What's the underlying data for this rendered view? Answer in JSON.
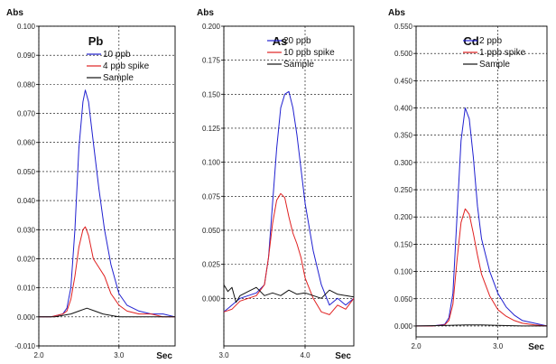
{
  "chart_data": [
    {
      "type": "line",
      "title": "Pb",
      "ylabel": "Abs",
      "xlabel": "Sec",
      "xlim": [
        2.0,
        3.7
      ],
      "ylim": [
        -0.01,
        0.1
      ],
      "xticks": [
        2.0,
        3.0
      ],
      "xtick_labels": [
        "2.0",
        "3.0"
      ],
      "yticks": [
        -0.01,
        0.0,
        0.01,
        0.02,
        0.03,
        0.04,
        0.05,
        0.06,
        0.07,
        0.08,
        0.09,
        0.1
      ],
      "ytick_labels": [
        "-0.010",
        "0.000",
        "0.010",
        "0.020",
        "0.030",
        "0.040",
        "0.050",
        "0.060",
        "0.070",
        "0.080",
        "0.090",
        "0.100"
      ],
      "grid": true,
      "legend_position": "top-center",
      "series": [
        {
          "name": "10 ppb",
          "color": "#2020d0",
          "x": [
            2.0,
            2.15,
            2.3,
            2.35,
            2.4,
            2.45,
            2.5,
            2.55,
            2.58,
            2.62,
            2.68,
            2.75,
            2.82,
            2.9,
            3.0,
            3.1,
            3.25,
            3.4,
            3.55,
            3.7
          ],
          "y": [
            0.0,
            0.0,
            0.001,
            0.003,
            0.01,
            0.03,
            0.058,
            0.074,
            0.078,
            0.074,
            0.06,
            0.044,
            0.03,
            0.018,
            0.008,
            0.004,
            0.002,
            0.001,
            0.001,
            0.0
          ]
        },
        {
          "name": "4 ppb spike",
          "color": "#e02020",
          "x": [
            2.0,
            2.15,
            2.3,
            2.35,
            2.4,
            2.45,
            2.5,
            2.55,
            2.58,
            2.62,
            2.68,
            2.75,
            2.82,
            2.9,
            3.0,
            3.1,
            3.25,
            3.4,
            3.55,
            3.7
          ],
          "y": [
            0.0,
            0.0,
            0.001,
            0.002,
            0.006,
            0.014,
            0.024,
            0.03,
            0.031,
            0.028,
            0.02,
            0.017,
            0.014,
            0.008,
            0.004,
            0.002,
            0.001,
            0.001,
            0.0,
            0.0
          ]
        },
        {
          "name": "Sample",
          "color": "#111111",
          "x": [
            2.0,
            2.2,
            2.4,
            2.5,
            2.6,
            2.7,
            2.8,
            3.0,
            3.2,
            3.4,
            3.7
          ],
          "y": [
            0.0,
            0.0,
            0.001,
            0.002,
            0.003,
            0.002,
            0.001,
            0.0,
            0.0,
            0.0,
            0.0
          ]
        }
      ]
    },
    {
      "type": "line",
      "title": "As",
      "ylabel": "Abs",
      "xlabel": "Sec",
      "xlim": [
        3.0,
        4.6
      ],
      "ylim": [
        -0.035,
        0.2
      ],
      "xticks": [
        3.0,
        4.0
      ],
      "xtick_labels": [
        "3.0",
        "4.0"
      ],
      "yticks": [
        0.0,
        0.025,
        0.05,
        0.075,
        0.1,
        0.125,
        0.15,
        0.175,
        0.2
      ],
      "ytick_labels": [
        "0.000",
        "0.025",
        "0.050",
        "0.075",
        "0.100",
        "0.125",
        "0.150",
        "0.175",
        "0.200"
      ],
      "grid": true,
      "legend_position": "top-center",
      "series": [
        {
          "name": "20 ppb",
          "color": "#2020d0",
          "x": [
            3.0,
            3.1,
            3.2,
            3.3,
            3.4,
            3.5,
            3.55,
            3.6,
            3.65,
            3.7,
            3.75,
            3.8,
            3.85,
            3.9,
            3.95,
            4.0,
            4.1,
            4.2,
            4.3,
            4.4,
            4.5,
            4.6
          ],
          "y": [
            -0.01,
            -0.005,
            0.0,
            0.002,
            0.004,
            0.01,
            0.03,
            0.07,
            0.11,
            0.14,
            0.15,
            0.152,
            0.14,
            0.12,
            0.095,
            0.07,
            0.035,
            0.01,
            -0.005,
            0.0,
            -0.005,
            0.0
          ]
        },
        {
          "name": "10 ppb spike",
          "color": "#e02020",
          "x": [
            3.0,
            3.1,
            3.2,
            3.3,
            3.4,
            3.5,
            3.55,
            3.6,
            3.65,
            3.7,
            3.75,
            3.8,
            3.85,
            3.9,
            3.95,
            4.0,
            4.1,
            4.2,
            4.3,
            4.4,
            4.5,
            4.6
          ],
          "y": [
            -0.01,
            -0.008,
            -0.002,
            0.0,
            0.002,
            0.01,
            0.03,
            0.055,
            0.072,
            0.077,
            0.074,
            0.06,
            0.048,
            0.04,
            0.03,
            0.015,
            0.0,
            -0.01,
            -0.012,
            -0.005,
            -0.008,
            0.0
          ]
        },
        {
          "name": "Sample",
          "color": "#111111",
          "x": [
            3.0,
            3.05,
            3.1,
            3.15,
            3.2,
            3.3,
            3.4,
            3.5,
            3.6,
            3.7,
            3.8,
            3.9,
            4.0,
            4.1,
            4.2,
            4.3,
            4.4,
            4.5,
            4.6
          ],
          "y": [
            0.01,
            0.005,
            0.008,
            -0.003,
            0.002,
            0.005,
            0.008,
            0.002,
            0.004,
            0.002,
            0.006,
            0.003,
            0.004,
            0.002,
            0.0,
            0.006,
            0.003,
            0.002,
            0.001
          ]
        }
      ]
    },
    {
      "type": "line",
      "title": "Cd",
      "ylabel": "Abs",
      "xlabel": "Sec",
      "xlim": [
        2.0,
        3.6
      ],
      "ylim": [
        -0.02,
        0.55
      ],
      "xticks": [
        2.0,
        3.0
      ],
      "xtick_labels": [
        "2.0",
        "3.0"
      ],
      "yticks": [
        0.0,
        0.05,
        0.1,
        0.15,
        0.2,
        0.25,
        0.3,
        0.35,
        0.4,
        0.45,
        0.5,
        0.55
      ],
      "ytick_labels": [
        "0.000",
        "0.050",
        "0.100",
        "0.150",
        "0.200",
        "0.250",
        "0.300",
        "0.350",
        "0.400",
        "0.450",
        "0.500",
        "0.550"
      ],
      "grid": true,
      "legend_position": "top-center",
      "series": [
        {
          "name": "2 ppb",
          "color": "#2020d0",
          "x": [
            2.0,
            2.2,
            2.35,
            2.4,
            2.45,
            2.5,
            2.55,
            2.6,
            2.65,
            2.7,
            2.75,
            2.8,
            2.9,
            3.0,
            3.1,
            3.2,
            3.3,
            3.45,
            3.6
          ],
          "y": [
            0.0,
            0.0,
            0.003,
            0.015,
            0.06,
            0.2,
            0.34,
            0.4,
            0.38,
            0.31,
            0.22,
            0.16,
            0.1,
            0.06,
            0.035,
            0.02,
            0.01,
            0.005,
            0.0
          ]
        },
        {
          "name": "1 ppb spike",
          "color": "#e02020",
          "x": [
            2.0,
            2.2,
            2.35,
            2.4,
            2.45,
            2.5,
            2.55,
            2.6,
            2.65,
            2.7,
            2.75,
            2.8,
            2.9,
            3.0,
            3.1,
            3.2,
            3.3,
            3.45,
            3.6
          ],
          "y": [
            0.0,
            0.0,
            0.002,
            0.01,
            0.04,
            0.12,
            0.19,
            0.215,
            0.205,
            0.17,
            0.13,
            0.095,
            0.055,
            0.03,
            0.018,
            0.01,
            0.005,
            0.002,
            0.0
          ]
        },
        {
          "name": "Sample",
          "color": "#111111",
          "x": [
            2.0,
            2.4,
            2.6,
            2.8,
            3.0,
            3.3,
            3.6
          ],
          "y": [
            0.0,
            0.001,
            0.002,
            0.002,
            0.001,
            0.0,
            0.0
          ]
        }
      ]
    }
  ]
}
